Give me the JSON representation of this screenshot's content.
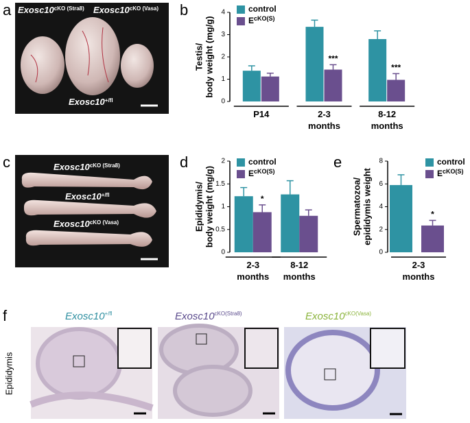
{
  "panel_letters": [
    "a",
    "b",
    "c",
    "d",
    "e",
    "f"
  ],
  "photo_a_labels": [
    {
      "text": "Exosc10",
      "sup": "cKO (Stra8)"
    },
    {
      "text": "Exosc10",
      "sup": "cKO (Vasa)"
    },
    {
      "text": "Exosc10",
      "sup": "+/fl"
    }
  ],
  "photo_c_labels": [
    {
      "text": "Exosc10",
      "sup": "cKO (Stra8)"
    },
    {
      "text": "Exosc10",
      "sup": "+/fl"
    },
    {
      "text": "Exosc10",
      "sup": "cKO (Vasa)"
    }
  ],
  "panel_f": {
    "row_label": "Epididymis",
    "titles": [
      {
        "text": "Exosc10",
        "sup": "+/fl"
      },
      {
        "text": "Exosc10",
        "sup": "cKO(Stra8)"
      },
      {
        "text": "Exosc10",
        "sup": "cKO(Vasa)"
      }
    ]
  },
  "chart_data": [
    {
      "type": "bar",
      "ylabel": [
        "Testis/",
        "body weight (mg/g)"
      ],
      "categories": [
        "P14",
        "2-3 months",
        "8-12 months"
      ],
      "ylim": [
        0,
        4
      ],
      "yticks": [
        0,
        1,
        2,
        3,
        4
      ],
      "series": [
        {
          "name": "control",
          "color": "#2e93a3",
          "values": [
            1.38,
            3.35,
            2.8
          ],
          "errors": [
            0.22,
            0.3,
            0.37
          ],
          "annotations": [
            null,
            null,
            null
          ]
        },
        {
          "name": "E",
          "name_sup": "cKO(S)",
          "color": "#6a4f8e",
          "values": [
            1.12,
            1.43,
            0.97
          ],
          "errors": [
            0.15,
            0.22,
            0.28
          ],
          "annotations": [
            null,
            "***",
            "***"
          ]
        }
      ]
    },
    {
      "type": "bar",
      "ylabel": [
        "Epididymis/",
        "body weight (mg/g)"
      ],
      "categories": [
        "2-3 months",
        "8-12 months"
      ],
      "ylim": [
        0,
        2
      ],
      "yticks": [
        0,
        0.5,
        1,
        1.5,
        2
      ],
      "series": [
        {
          "name": "control",
          "color": "#2e93a3",
          "values": [
            1.23,
            1.27
          ],
          "errors": [
            0.19,
            0.3
          ],
          "annotations": [
            null,
            null
          ]
        },
        {
          "name": "E",
          "name_sup": "cKO(S)",
          "color": "#6a4f8e",
          "values": [
            0.88,
            0.8
          ],
          "errors": [
            0.16,
            0.13
          ],
          "annotations": [
            "*",
            null
          ]
        }
      ]
    },
    {
      "type": "bar",
      "ylabel": [
        "Spermatozoa/",
        "epididymis weight"
      ],
      "categories": [
        "2-3 months"
      ],
      "ylim": [
        0,
        8
      ],
      "yticks": [
        0,
        2,
        4,
        6,
        8
      ],
      "series": [
        {
          "name": "control",
          "color": "#2e93a3",
          "values": [
            5.9
          ],
          "errors": [
            0.9
          ],
          "annotations": [
            null
          ]
        },
        {
          "name": "E",
          "name_sup": "cKO(S)",
          "color": "#6a4f8e",
          "values": [
            2.35
          ],
          "errors": [
            0.45
          ],
          "annotations": [
            "*"
          ]
        }
      ]
    }
  ]
}
